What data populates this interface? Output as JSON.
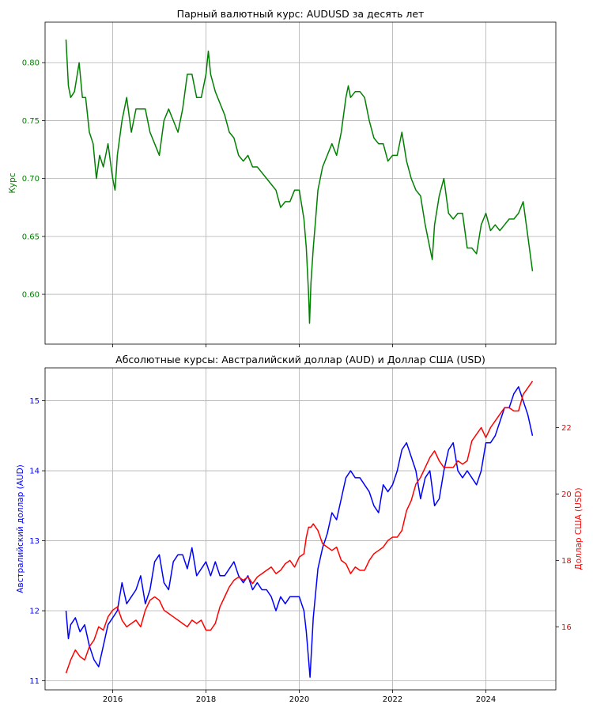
{
  "chart_data": [
    {
      "type": "line",
      "title": "Парный валютный курс: AUDUSD за десять лет",
      "xlabel": "",
      "ylabel": "Курс",
      "ylabel_color": "#008000",
      "xlim": [
        2014.55,
        2025.5
      ],
      "ylim": [
        0.557,
        0.835
      ],
      "x_ticks": [
        2016,
        2018,
        2020,
        2022,
        2024
      ],
      "x_tick_labels": [],
      "y_ticks": [
        0.6,
        0.65,
        0.7,
        0.75,
        0.8
      ],
      "y_tick_labels": [
        "0.60",
        "0.65",
        "0.70",
        "0.75",
        "0.80"
      ],
      "grid": true,
      "series": [
        {
          "name": "",
          "color": "#008000",
          "x": [
            2015.0,
            2015.05,
            2015.1,
            2015.18,
            2015.28,
            2015.35,
            2015.42,
            2015.5,
            2015.58,
            2015.65,
            2015.72,
            2015.8,
            2015.9,
            2016.0,
            2016.05,
            2016.1,
            2016.2,
            2016.3,
            2016.4,
            2016.5,
            2016.6,
            2016.7,
            2016.8,
            2016.9,
            2017.0,
            2017.1,
            2017.2,
            2017.3,
            2017.4,
            2017.5,
            2017.6,
            2017.7,
            2017.8,
            2017.9,
            2018.0,
            2018.05,
            2018.1,
            2018.2,
            2018.3,
            2018.4,
            2018.5,
            2018.6,
            2018.7,
            2018.8,
            2018.9,
            2019.0,
            2019.1,
            2019.2,
            2019.3,
            2019.4,
            2019.5,
            2019.6,
            2019.7,
            2019.8,
            2019.9,
            2020.0,
            2020.1,
            2020.15,
            2020.2,
            2020.22,
            2020.25,
            2020.3,
            2020.35,
            2020.4,
            2020.5,
            2020.6,
            2020.7,
            2020.8,
            2020.9,
            2021.0,
            2021.05,
            2021.1,
            2021.2,
            2021.3,
            2021.4,
            2021.5,
            2021.6,
            2021.7,
            2021.8,
            2021.9,
            2022.0,
            2022.1,
            2022.2,
            2022.3,
            2022.4,
            2022.5,
            2022.6,
            2022.7,
            2022.8,
            2022.85,
            2022.9,
            2023.0,
            2023.1,
            2023.2,
            2023.3,
            2023.4,
            2023.5,
            2023.6,
            2023.7,
            2023.8,
            2023.9,
            2024.0,
            2024.1,
            2024.2,
            2024.3,
            2024.4,
            2024.5,
            2024.6,
            2024.7,
            2024.8,
            2024.9,
            2025.0
          ],
          "values": [
            0.82,
            0.78,
            0.77,
            0.775,
            0.8,
            0.77,
            0.77,
            0.74,
            0.73,
            0.7,
            0.72,
            0.71,
            0.73,
            0.7,
            0.69,
            0.72,
            0.75,
            0.77,
            0.74,
            0.76,
            0.76,
            0.76,
            0.74,
            0.73,
            0.72,
            0.75,
            0.76,
            0.75,
            0.74,
            0.76,
            0.79,
            0.79,
            0.77,
            0.77,
            0.79,
            0.81,
            0.79,
            0.775,
            0.765,
            0.755,
            0.74,
            0.735,
            0.72,
            0.715,
            0.72,
            0.71,
            0.71,
            0.705,
            0.7,
            0.695,
            0.69,
            0.675,
            0.68,
            0.68,
            0.69,
            0.69,
            0.665,
            0.64,
            0.6,
            0.575,
            0.61,
            0.64,
            0.665,
            0.69,
            0.71,
            0.72,
            0.73,
            0.72,
            0.74,
            0.77,
            0.78,
            0.77,
            0.775,
            0.775,
            0.77,
            0.75,
            0.735,
            0.73,
            0.73,
            0.715,
            0.72,
            0.72,
            0.74,
            0.715,
            0.7,
            0.69,
            0.685,
            0.66,
            0.64,
            0.63,
            0.66,
            0.685,
            0.7,
            0.67,
            0.665,
            0.67,
            0.67,
            0.64,
            0.64,
            0.635,
            0.66,
            0.67,
            0.655,
            0.66,
            0.655,
            0.66,
            0.665,
            0.665,
            0.67,
            0.68,
            0.65,
            0.62
          ]
        }
      ]
    },
    {
      "type": "line",
      "title": "Абсолютные курсы: Австралийский доллар (AUD) и Доллар США (USD)",
      "xlabel": "",
      "ylabel": "Австралийский доллар (AUD)",
      "ylabel_color": "#0000ff",
      "ylabel_right": "Доллар США (USD)",
      "ylabel_right_color": "#ff0000",
      "xlim": [
        2014.55,
        2025.5
      ],
      "ylim": [
        10.87,
        15.47
      ],
      "ylim_right": [
        14.1,
        23.8
      ],
      "x_ticks": [
        2016,
        2018,
        2020,
        2022,
        2024
      ],
      "x_tick_labels": [
        "2016",
        "2018",
        "2020",
        "2022",
        "2024"
      ],
      "y_ticks": [
        11,
        12,
        13,
        14,
        15
      ],
      "y_tick_labels": [
        "11",
        "12",
        "13",
        "14",
        "15"
      ],
      "y_ticks_right": [
        16,
        18,
        20,
        22
      ],
      "y_tick_labels_right": [
        "16",
        "18",
        "20",
        "22"
      ],
      "grid": true,
      "series": [
        {
          "name": "",
          "axis": "left",
          "color": "#0000ff",
          "x": [
            2015.0,
            2015.05,
            2015.1,
            2015.2,
            2015.3,
            2015.4,
            2015.5,
            2015.6,
            2015.7,
            2015.8,
            2015.9,
            2016.0,
            2016.1,
            2016.2,
            2016.3,
            2016.4,
            2016.5,
            2016.6,
            2016.7,
            2016.8,
            2016.9,
            2017.0,
            2017.1,
            2017.2,
            2017.3,
            2017.4,
            2017.5,
            2017.6,
            2017.7,
            2017.8,
            2017.9,
            2018.0,
            2018.1,
            2018.2,
            2018.3,
            2018.4,
            2018.5,
            2018.6,
            2018.7,
            2018.8,
            2018.9,
            2019.0,
            2019.1,
            2019.2,
            2019.3,
            2019.4,
            2019.5,
            2019.6,
            2019.7,
            2019.8,
            2019.9,
            2020.0,
            2020.1,
            2020.15,
            2020.2,
            2020.23,
            2020.3,
            2020.4,
            2020.5,
            2020.6,
            2020.7,
            2020.8,
            2020.9,
            2021.0,
            2021.1,
            2021.2,
            2021.3,
            2021.4,
            2021.5,
            2021.6,
            2021.7,
            2021.8,
            2021.9,
            2022.0,
            2022.1,
            2022.2,
            2022.3,
            2022.4,
            2022.5,
            2022.6,
            2022.7,
            2022.8,
            2022.9,
            2023.0,
            2023.1,
            2023.2,
            2023.3,
            2023.4,
            2023.5,
            2023.6,
            2023.7,
            2023.8,
            2023.9,
            2024.0,
            2024.1,
            2024.2,
            2024.3,
            2024.4,
            2024.5,
            2024.6,
            2024.7,
            2024.8,
            2024.9,
            2025.0
          ],
          "values": [
            12.0,
            11.6,
            11.8,
            11.9,
            11.7,
            11.8,
            11.5,
            11.3,
            11.2,
            11.5,
            11.8,
            11.9,
            12.0,
            12.4,
            12.1,
            12.2,
            12.3,
            12.5,
            12.1,
            12.3,
            12.7,
            12.8,
            12.4,
            12.3,
            12.7,
            12.8,
            12.8,
            12.6,
            12.9,
            12.5,
            12.6,
            12.7,
            12.5,
            12.7,
            12.5,
            12.5,
            12.6,
            12.7,
            12.5,
            12.4,
            12.5,
            12.3,
            12.4,
            12.3,
            12.3,
            12.2,
            12.0,
            12.2,
            12.1,
            12.2,
            12.2,
            12.2,
            12.0,
            11.7,
            11.3,
            11.05,
            11.9,
            12.6,
            12.9,
            13.1,
            13.4,
            13.3,
            13.6,
            13.9,
            14.0,
            13.9,
            13.9,
            13.8,
            13.7,
            13.5,
            13.4,
            13.8,
            13.7,
            13.8,
            14.0,
            14.3,
            14.4,
            14.2,
            14.0,
            13.6,
            13.9,
            14.0,
            13.5,
            13.6,
            14.0,
            14.3,
            14.4,
            14.0,
            13.9,
            14.0,
            13.9,
            13.8,
            14.0,
            14.4,
            14.4,
            14.5,
            14.7,
            14.9,
            14.9,
            15.1,
            15.2,
            15.0,
            14.8,
            14.5
          ]
        },
        {
          "name": "",
          "axis": "right",
          "color": "#ff0000",
          "x": [
            2015.0,
            2015.1,
            2015.2,
            2015.3,
            2015.4,
            2015.5,
            2015.6,
            2015.7,
            2015.8,
            2015.9,
            2016.0,
            2016.1,
            2016.2,
            2016.3,
            2016.4,
            2016.5,
            2016.6,
            2016.7,
            2016.8,
            2016.9,
            2017.0,
            2017.1,
            2017.2,
            2017.3,
            2017.4,
            2017.5,
            2017.6,
            2017.7,
            2017.8,
            2017.9,
            2018.0,
            2018.1,
            2018.2,
            2018.3,
            2018.4,
            2018.5,
            2018.6,
            2018.7,
            2018.8,
            2018.9,
            2019.0,
            2019.1,
            2019.2,
            2019.3,
            2019.4,
            2019.5,
            2019.6,
            2019.7,
            2019.8,
            2019.9,
            2020.0,
            2020.1,
            2020.15,
            2020.2,
            2020.25,
            2020.3,
            2020.4,
            2020.5,
            2020.6,
            2020.7,
            2020.8,
            2020.9,
            2021.0,
            2021.1,
            2021.2,
            2021.3,
            2021.4,
            2021.5,
            2021.6,
            2021.7,
            2021.8,
            2021.9,
            2022.0,
            2022.1,
            2022.2,
            2022.3,
            2022.4,
            2022.5,
            2022.6,
            2022.7,
            2022.8,
            2022.9,
            2023.0,
            2023.1,
            2023.2,
            2023.3,
            2023.4,
            2023.5,
            2023.6,
            2023.7,
            2023.8,
            2023.9,
            2024.0,
            2024.1,
            2024.2,
            2024.3,
            2024.4,
            2024.5,
            2024.6,
            2024.7,
            2024.8,
            2024.9,
            2025.0
          ],
          "values": [
            14.6,
            15.0,
            15.3,
            15.1,
            15.0,
            15.4,
            15.6,
            16.0,
            15.9,
            16.3,
            16.5,
            16.6,
            16.2,
            16.0,
            16.1,
            16.2,
            16.0,
            16.5,
            16.8,
            16.9,
            16.8,
            16.5,
            16.4,
            16.3,
            16.2,
            16.1,
            16.0,
            16.2,
            16.1,
            16.2,
            15.9,
            15.9,
            16.1,
            16.6,
            16.9,
            17.2,
            17.4,
            17.5,
            17.4,
            17.5,
            17.3,
            17.5,
            17.6,
            17.7,
            17.8,
            17.6,
            17.7,
            17.9,
            18.0,
            17.8,
            18.1,
            18.2,
            18.7,
            19.0,
            19.0,
            19.1,
            18.9,
            18.5,
            18.4,
            18.3,
            18.4,
            18.0,
            17.9,
            17.6,
            17.8,
            17.7,
            17.7,
            18.0,
            18.2,
            18.3,
            18.4,
            18.6,
            18.7,
            18.7,
            18.9,
            19.5,
            19.8,
            20.3,
            20.5,
            20.8,
            21.1,
            21.3,
            21.0,
            20.8,
            20.8,
            20.8,
            21.0,
            20.9,
            21.0,
            21.6,
            21.8,
            22.0,
            21.7,
            22.0,
            22.2,
            22.4,
            22.6,
            22.6,
            22.5,
            22.5,
            23.0,
            23.2,
            23.4
          ]
        }
      ]
    }
  ]
}
